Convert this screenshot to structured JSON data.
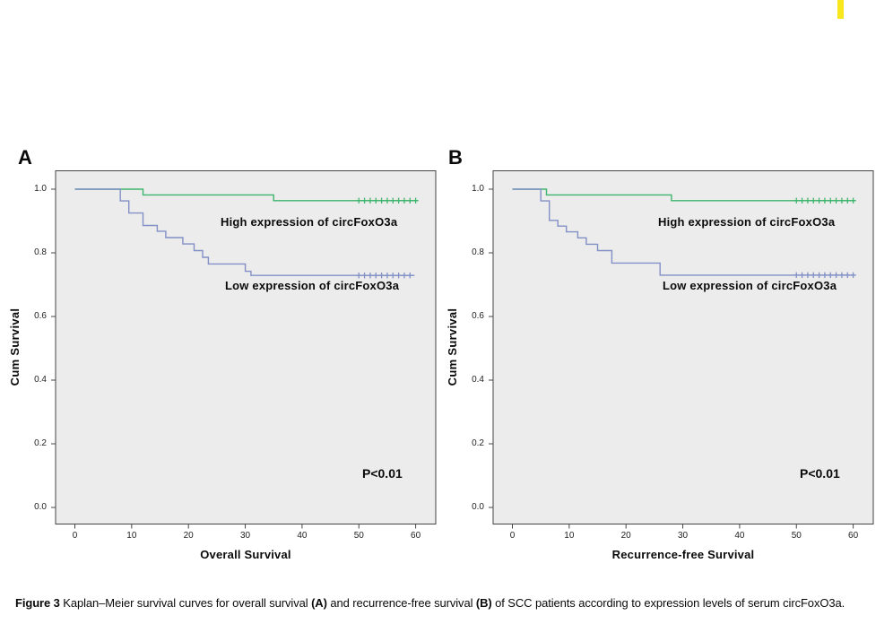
{
  "page": {
    "background": "#ffffff",
    "highlight_bar_color": "#f8e71c"
  },
  "caption": {
    "prefix": "Figure 3 ",
    "part1": "Kaplan–Meier survival curves for overall survival ",
    "bold_a": "(A)",
    "part2": " and recurrence-free survival ",
    "bold_b": "(B)",
    "part3": " of SCC patients according to expression levels of serum circFoxO3a."
  },
  "chart_data": [
    {
      "type": "line",
      "subtype": "kaplan_meier_step",
      "panel_label": "A",
      "xlabel": "Overall Survival",
      "ylabel": "Cum Survival",
      "annotation": "P<0.01",
      "x_ticks": [
        0,
        10,
        20,
        30,
        40,
        50,
        60
      ],
      "y_ticks": [
        0.0,
        0.2,
        0.4,
        0.6,
        0.8,
        1.0
      ],
      "xlim": [
        -3.5,
        63.5
      ],
      "ylim": [
        -0.06,
        1.06
      ],
      "plot_background": "#ececec",
      "grid": false,
      "series": [
        {
          "name": "High expression of circFoxO3a",
          "color": "#3eb46c",
          "steps": [
            [
              0,
              1.0
            ],
            [
              12,
              1.0
            ],
            [
              12,
              0.982
            ],
            [
              35,
              0.982
            ],
            [
              35,
              0.964
            ],
            [
              60.3,
              0.964
            ]
          ],
          "censor_level": 0.964,
          "censor_marks_x": [
            50,
            51,
            52,
            53,
            54,
            55,
            56,
            57,
            58,
            59,
            60
          ]
        },
        {
          "name": "Low expression of circFoxO3a",
          "color": "#8290c6",
          "steps": [
            [
              0,
              1.0
            ],
            [
              8,
              1.0
            ],
            [
              8,
              0.963
            ],
            [
              9.5,
              0.963
            ],
            [
              9.5,
              0.925
            ],
            [
              12,
              0.925
            ],
            [
              12,
              0.886
            ],
            [
              14.5,
              0.886
            ],
            [
              14.5,
              0.868
            ],
            [
              16,
              0.868
            ],
            [
              16,
              0.848
            ],
            [
              19,
              0.848
            ],
            [
              19,
              0.828
            ],
            [
              21,
              0.828
            ],
            [
              21,
              0.807
            ],
            [
              22.5,
              0.807
            ],
            [
              22.5,
              0.786
            ],
            [
              23.5,
              0.786
            ],
            [
              23.5,
              0.765
            ],
            [
              30,
              0.765
            ],
            [
              30,
              0.742
            ],
            [
              31,
              0.742
            ],
            [
              31,
              0.729
            ],
            [
              59.8,
              0.729
            ]
          ],
          "censor_level": 0.729,
          "censor_marks_x": [
            50,
            51,
            52,
            53,
            54,
            55,
            56,
            57,
            58,
            59
          ]
        }
      ]
    },
    {
      "type": "line",
      "subtype": "kaplan_meier_step",
      "panel_label": "B",
      "xlabel": "Recurrence-free Survival",
      "ylabel": "Cum Survival",
      "annotation": "P<0.01",
      "x_ticks": [
        0,
        10,
        20,
        30,
        40,
        50,
        60
      ],
      "y_ticks": [
        0.0,
        0.2,
        0.4,
        0.6,
        0.8,
        1.0
      ],
      "xlim": [
        -3.5,
        63.5
      ],
      "ylim": [
        -0.06,
        1.06
      ],
      "plot_background": "#ececec",
      "grid": false,
      "series": [
        {
          "name": "High expression of circFoxO3a",
          "color": "#3eb46c",
          "steps": [
            [
              0,
              1.0
            ],
            [
              6,
              1.0
            ],
            [
              6,
              0.982
            ],
            [
              28,
              0.982
            ],
            [
              28,
              0.964
            ],
            [
              60.3,
              0.964
            ]
          ],
          "censor_level": 0.964,
          "censor_marks_x": [
            50,
            51,
            52,
            53,
            54,
            55,
            56,
            57,
            58,
            59,
            60
          ]
        },
        {
          "name": "Low expression of circFoxO3a",
          "color": "#8290c6",
          "steps": [
            [
              0,
              1.0
            ],
            [
              5,
              1.0
            ],
            [
              5,
              0.963
            ],
            [
              6.5,
              0.963
            ],
            [
              6.5,
              0.902
            ],
            [
              8,
              0.902
            ],
            [
              8,
              0.884
            ],
            [
              9.5,
              0.884
            ],
            [
              9.5,
              0.866
            ],
            [
              11.5,
              0.866
            ],
            [
              11.5,
              0.847
            ],
            [
              13,
              0.847
            ],
            [
              13,
              0.827
            ],
            [
              15,
              0.827
            ],
            [
              15,
              0.807
            ],
            [
              17.5,
              0.807
            ],
            [
              17.5,
              0.768
            ],
            [
              26,
              0.768
            ],
            [
              26,
              0.73
            ],
            [
              60.3,
              0.73
            ]
          ],
          "censor_level": 0.73,
          "censor_marks_x": [
            50,
            51,
            52,
            53,
            54,
            55,
            56,
            57,
            58,
            59,
            60
          ]
        }
      ]
    }
  ]
}
